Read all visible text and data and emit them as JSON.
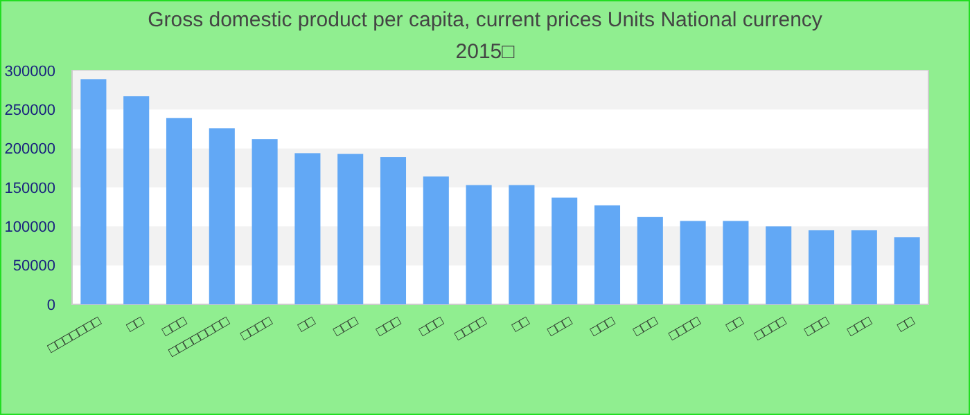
{
  "chart_data": {
    "type": "bar",
    "title": "Gross domestic product per capita, current prices Units National currency",
    "subtitle": "2015□",
    "categories": [
      "□□□□□□□",
      "□□",
      "□□□",
      "□□□□□□□□",
      "□□□□",
      "□□",
      "□□□",
      "□□□",
      "□□□",
      "□□□□",
      "□□",
      "□□□",
      "□□□",
      "□□□",
      "□□□□",
      "□□",
      "□□□□",
      "□□□",
      "□□□",
      "□□"
    ],
    "values": [
      289000,
      267000,
      239000,
      226000,
      212000,
      194000,
      193000,
      189000,
      164000,
      153000,
      153000,
      137000,
      127000,
      112000,
      107000,
      107000,
      100000,
      95000,
      95000,
      86000
    ],
    "color": "#62a8f5",
    "ylim": [
      0,
      300000
    ],
    "yticks": [
      0,
      50000,
      100000,
      150000,
      200000,
      250000,
      300000
    ],
    "bands": [
      {
        "axis": "y",
        "from": 50000,
        "to": 100000,
        "color": "#f2f2f2"
      },
      {
        "axis": "y",
        "from": 150000,
        "to": 200000,
        "color": "#f2f2f2"
      },
      {
        "axis": "y",
        "from": 250000,
        "to": 300000,
        "color": "#f2f2f2"
      }
    ]
  }
}
